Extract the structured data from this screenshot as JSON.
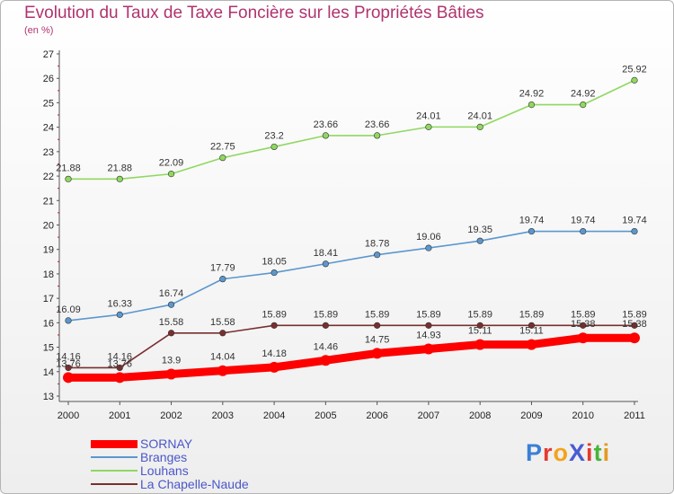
{
  "title": "Evolution du Taux de Taxe Foncière sur les Propriétés Bâties",
  "subtitle": "(en %)",
  "logo": {
    "text": "ProXiti",
    "colors": [
      "#3a7fd5",
      "#e33b2e",
      "#f3a31b",
      "#4a5cd1",
      "#e33b2e",
      "#4ab33a",
      "#e39a1e"
    ]
  },
  "chart_data": {
    "type": "line",
    "x": [
      "2000",
      "2001",
      "2002",
      "2003",
      "2004",
      "2005",
      "2006",
      "2007",
      "2008",
      "2009",
      "2010",
      "2011"
    ],
    "ylim": [
      13,
      27
    ],
    "yticks": [
      13,
      14,
      15,
      16,
      17,
      18,
      19,
      20,
      21,
      22,
      23,
      24,
      25,
      26,
      27
    ],
    "grid": false,
    "legend": "bottom-left",
    "series": [
      {
        "name": "SORNAY",
        "color": "#ff0000",
        "values": [
          13.76,
          13.76,
          13.9,
          14.04,
          14.18,
          14.46,
          14.75,
          14.93,
          15.11,
          15.11,
          15.38,
          15.38
        ],
        "labels": [
          "13.76",
          "13.76",
          "13.9",
          "14.04",
          "14.18",
          "14.46",
          "14.75",
          "14.93",
          "15.11",
          "15.11",
          "15.38",
          "15.38"
        ]
      },
      {
        "name": "Branges",
        "color": "#5b97cf",
        "values": [
          16.09,
          16.33,
          16.74,
          17.79,
          18.05,
          18.41,
          18.78,
          19.06,
          19.35,
          19.74,
          19.74,
          19.74
        ],
        "labels": [
          "16.09",
          "16.33",
          "16.74",
          "17.79",
          "18.05",
          "18.41",
          "18.78",
          "19.06",
          "19.35",
          "19.74",
          "19.74",
          "19.74"
        ]
      },
      {
        "name": "Louhans",
        "color": "#90d860",
        "values": [
          21.88,
          21.88,
          22.09,
          22.75,
          23.2,
          23.66,
          23.66,
          24.01,
          24.01,
          24.92,
          24.92,
          25.92
        ],
        "labels": [
          "21.88",
          "21.88",
          "22.09",
          "22.75",
          "23.2",
          "23.66",
          "23.66",
          "24.01",
          "24.01",
          "24.92",
          "24.92",
          "25.92"
        ]
      },
      {
        "name": "La Chapelle-Naude",
        "color": "#7a2e2e",
        "values": [
          14.16,
          14.16,
          15.58,
          15.58,
          15.89,
          15.89,
          15.89,
          15.89,
          15.89,
          15.89,
          15.89,
          15.89
        ],
        "labels": [
          "14.16",
          "14.16",
          "15.58",
          "15.58",
          "15.89",
          "15.89",
          "15.89",
          "15.89",
          "15.89",
          "15.89",
          "15.89",
          "15.89"
        ]
      }
    ]
  }
}
